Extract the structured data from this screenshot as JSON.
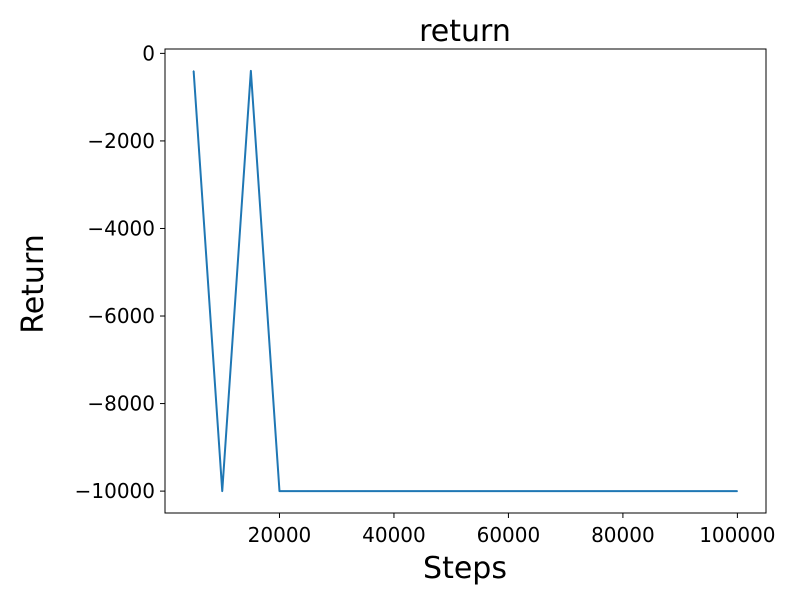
{
  "chart_data": {
    "type": "line",
    "title": "return",
    "xlabel": "Steps",
    "ylabel": "Return",
    "xlim": [
      0,
      105000
    ],
    "ylim": [
      -10500,
      100
    ],
    "xticks": [
      20000,
      40000,
      60000,
      80000,
      100000
    ],
    "xtick_labels": [
      "20000",
      "40000",
      "60000",
      "80000",
      "100000"
    ],
    "yticks": [
      0,
      -2000,
      -4000,
      -6000,
      -8000,
      -10000
    ],
    "ytick_labels": [
      "0",
      "−2000",
      "−4000",
      "−6000",
      "−8000",
      "−10000"
    ],
    "grid": false,
    "series": [
      {
        "name": "return",
        "color": "#1f77b4",
        "x": [
          5000,
          10000,
          15000,
          20000,
          25000,
          30000,
          35000,
          40000,
          45000,
          50000,
          55000,
          60000,
          65000,
          70000,
          75000,
          80000,
          85000,
          90000,
          95000,
          100000
        ],
        "y": [
          -400,
          -10000,
          -400,
          -10000,
          -10000,
          -10000,
          -10000,
          -10000,
          -10000,
          -10000,
          -10000,
          -10000,
          -10000,
          -10000,
          -10000,
          -10000,
          -10000,
          -10000,
          -10000,
          -10000
        ]
      }
    ]
  }
}
